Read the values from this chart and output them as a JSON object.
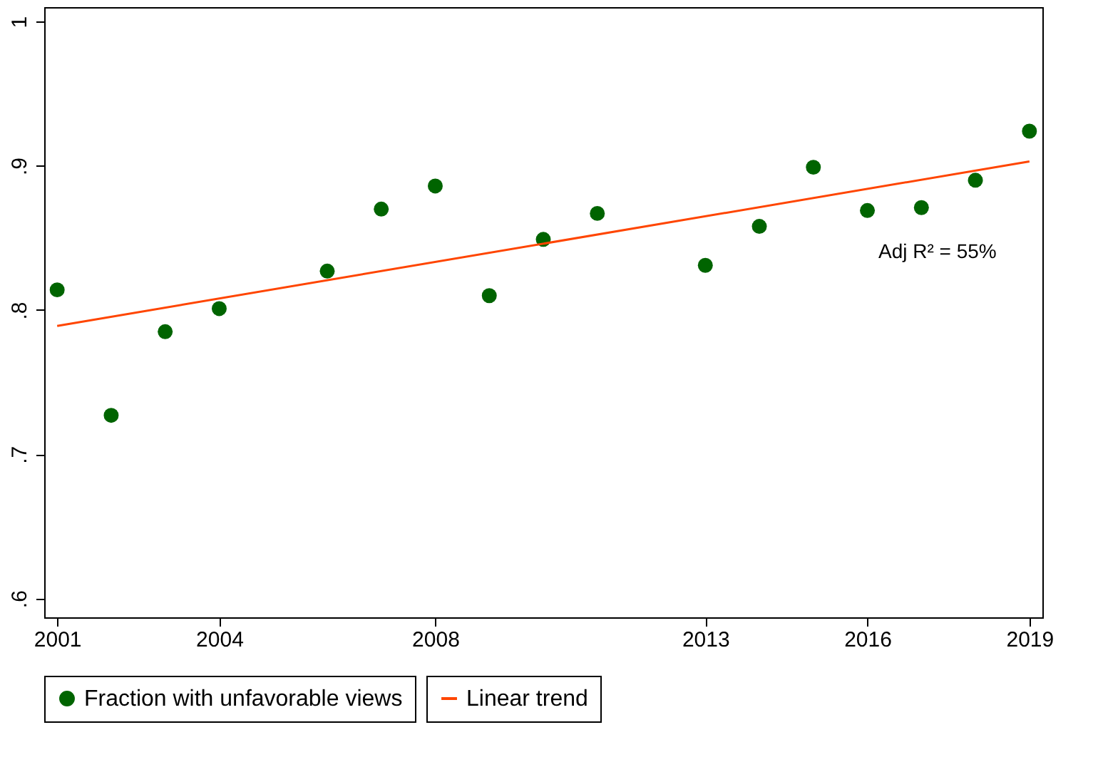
{
  "chart_data": {
    "type": "scatter",
    "x": [
      2001,
      2002,
      2003,
      2004,
      2006,
      2007,
      2008,
      2009,
      2010,
      2011,
      2013,
      2014,
      2015,
      2016,
      2017,
      2018,
      2019
    ],
    "series": [
      {
        "name": "Fraction with unfavorable views",
        "color": "#006400",
        "marker": "circle",
        "values": [
          0.814,
          0.727,
          0.785,
          0.801,
          0.827,
          0.87,
          0.886,
          0.81,
          0.849,
          0.867,
          0.831,
          0.858,
          0.899,
          0.869,
          0.871,
          0.89,
          0.924
        ]
      },
      {
        "name": "Linear trend",
        "type": "line",
        "color": "#ff4500",
        "x": [
          2001,
          2019
        ],
        "values": [
          0.789,
          0.903
        ],
        "line_style": "solid"
      }
    ],
    "xlim": [
      2000.76,
      2019.24
    ],
    "xticks": [
      2001,
      2004,
      2008,
      2013,
      2016,
      2019
    ],
    "ylim": [
      0.587,
      1.01
    ],
    "yticks": [
      {
        "value": 0.6,
        "label": ".6"
      },
      {
        "value": 0.7,
        "label": ".7"
      },
      {
        "value": 0.8,
        "label": ".8"
      },
      {
        "value": 0.9,
        "label": ".9"
      },
      {
        "value": 1,
        "label": "1"
      }
    ],
    "annotations": [
      "Adj R² = 55%"
    ],
    "grid": false,
    "legend": "bottom"
  }
}
